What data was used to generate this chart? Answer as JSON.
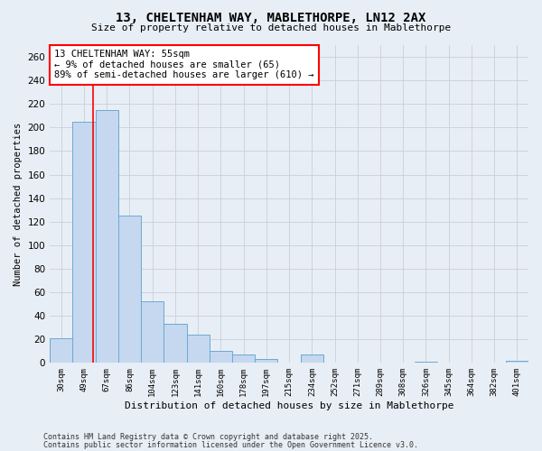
{
  "title_line1": "13, CHELTENHAM WAY, MABLETHORPE, LN12 2AX",
  "title_line2": "Size of property relative to detached houses in Mablethorpe",
  "xlabel": "Distribution of detached houses by size in Mablethorpe",
  "ylabel": "Number of detached properties",
  "categories": [
    "30sqm",
    "49sqm",
    "67sqm",
    "86sqm",
    "104sqm",
    "123sqm",
    "141sqm",
    "160sqm",
    "178sqm",
    "197sqm",
    "215sqm",
    "234sqm",
    "252sqm",
    "271sqm",
    "289sqm",
    "308sqm",
    "326sqm",
    "345sqm",
    "364sqm",
    "382sqm",
    "401sqm"
  ],
  "values": [
    21,
    205,
    215,
    125,
    52,
    33,
    24,
    10,
    7,
    3,
    0,
    7,
    0,
    0,
    0,
    0,
    1,
    0,
    0,
    0,
    2
  ],
  "bar_color": "#c5d8ef",
  "bar_edge_color": "#6aaad4",
  "red_line_x": 1.4,
  "annotation_text": "13 CHELTENHAM WAY: 55sqm\n← 9% of detached houses are smaller (65)\n89% of semi-detached houses are larger (610) →",
  "annotation_box_color": "white",
  "annotation_box_edge_color": "red",
  "ylim": [
    0,
    270
  ],
  "yticks": [
    0,
    20,
    40,
    60,
    80,
    100,
    120,
    140,
    160,
    180,
    200,
    220,
    240,
    260
  ],
  "footer_line1": "Contains HM Land Registry data © Crown copyright and database right 2025.",
  "footer_line2": "Contains public sector information licensed under the Open Government Licence v3.0.",
  "bg_color": "#e8eef5",
  "grid_color": "#c8d0da"
}
